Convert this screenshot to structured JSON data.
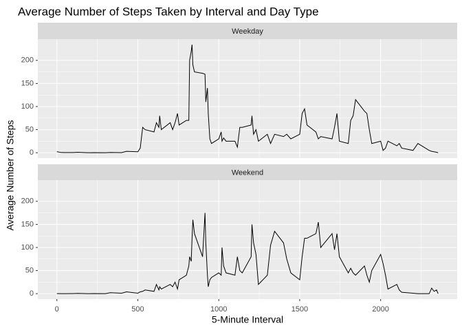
{
  "chart_data": {
    "type": "line",
    "title": "Average Number of Steps Taken by Interval and Day Type",
    "x_label": "5-Minute Interval",
    "y_label": "Average Number of Steps",
    "color": "#000000",
    "grid": true,
    "xlim": [
      -117.75,
      2472.75
    ],
    "ylim": [
      -11.7,
      245.9
    ],
    "xticks": [
      0,
      500,
      1000,
      1500,
      2000
    ],
    "yticks": [
      0,
      50,
      100,
      150,
      200
    ],
    "x": [
      0,
      25,
      50,
      100,
      130,
      200,
      230,
      300,
      330,
      400,
      430,
      500,
      515,
      530,
      545,
      600,
      615,
      630,
      635,
      645,
      700,
      715,
      730,
      745,
      755,
      800,
      815,
      820,
      830,
      835,
      840,
      850,
      900,
      915,
      920,
      930,
      935,
      945,
      955,
      1000,
      1015,
      1020,
      1030,
      1045,
      1100,
      1115,
      1130,
      1145,
      1200,
      1205,
      1215,
      1230,
      1245,
      1300,
      1320,
      1345,
      1400,
      1420,
      1445,
      1500,
      1515,
      1530,
      1545,
      1600,
      1615,
      1630,
      1700,
      1715,
      1730,
      1745,
      1800,
      1815,
      1830,
      1845,
      1900,
      1915,
      1930,
      1945,
      2000,
      2015,
      2030,
      2045,
      2100,
      2115,
      2130,
      2200,
      2230,
      2300,
      2315,
      2330,
      2345,
      2355
    ],
    "facets": [
      {
        "label": "Weekday",
        "values": [
          2.3,
          0.5,
          0.4,
          0.4,
          1,
          0,
          0.3,
          0,
          0.5,
          0.3,
          3,
          2,
          10,
          55,
          50,
          45,
          65,
          55,
          80,
          50,
          65,
          50,
          65,
          85,
          60,
          70,
          70,
          200,
          220,
          234,
          190,
          175,
          172,
          170,
          110,
          140,
          85,
          30,
          20,
          30,
          45,
          25,
          32,
          25,
          25,
          12,
          55,
          55,
          60,
          80,
          40,
          50,
          25,
          40,
          20,
          40,
          35,
          40,
          30,
          40,
          85,
          95,
          60,
          45,
          30,
          35,
          30,
          55,
          85,
          25,
          20,
          70,
          80,
          115,
          90,
          85,
          50,
          20,
          25,
          5,
          10,
          25,
          15,
          20,
          10,
          5,
          20,
          5,
          3,
          2,
          1,
          0
        ]
      },
      {
        "label": "Weekend",
        "values": [
          0.2,
          0,
          0,
          0.2,
          0.5,
          0,
          0.2,
          0,
          2,
          1,
          4,
          1,
          4,
          5,
          8,
          5,
          20,
          8,
          15,
          10,
          20,
          15,
          25,
          10,
          30,
          40,
          60,
          80,
          70,
          120,
          160,
          130,
          80,
          175,
          110,
          40,
          15,
          30,
          35,
          45,
          40,
          100,
          60,
          45,
          40,
          80,
          50,
          45,
          80,
          150,
          110,
          85,
          20,
          40,
          105,
          135,
          110,
          75,
          45,
          30,
          80,
          120,
          120,
          130,
          155,
          100,
          130,
          95,
          130,
          80,
          45,
          55,
          45,
          40,
          60,
          40,
          25,
          50,
          85,
          65,
          40,
          10,
          20,
          8,
          3,
          1,
          0,
          0,
          12,
          5,
          8,
          0
        ]
      }
    ]
  }
}
